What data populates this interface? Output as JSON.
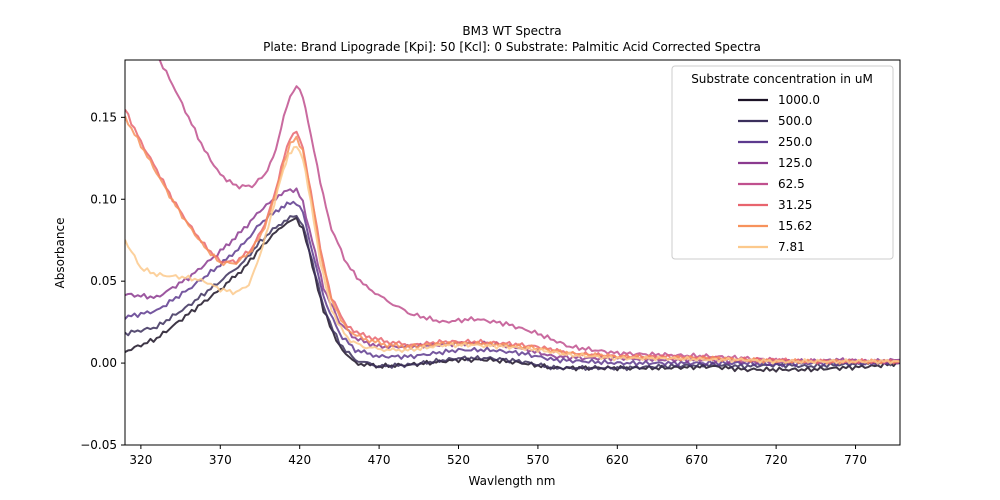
{
  "chart_data": {
    "type": "line",
    "title": "BM3 WT Spectra",
    "subtitle": "Plate: Brand Lipograde  [Kpi]: 50  [Kcl]: 0  Substrate: Palmitic Acid Corrected Spectra",
    "xlabel": "Wavlength nm",
    "ylabel": "Absorbance",
    "xlim": [
      310,
      798
    ],
    "ylim": [
      -0.05,
      0.185
    ],
    "xticks": [
      320,
      370,
      420,
      470,
      520,
      570,
      620,
      670,
      720,
      770
    ],
    "yticks": [
      -0.05,
      0.0,
      0.05,
      0.1,
      0.15
    ],
    "ytick_labels": [
      "−0.05",
      "0.00",
      "0.05",
      "0.10",
      "0.15"
    ],
    "grid": false,
    "legend_title": "Substrate concentration in uM",
    "legend_position": "top-right",
    "series": [
      {
        "name": "1000.0",
        "color": "#1c1326",
        "x": [
          310,
          330,
          350,
          370,
          385,
          395,
          405,
          412,
          418,
          422,
          428,
          435,
          445,
          455,
          470,
          490,
          520,
          540,
          560,
          580,
          600,
          620,
          650,
          680,
          700,
          720,
          740,
          760,
          780,
          798
        ],
        "y": [
          0.007,
          0.015,
          0.03,
          0.045,
          0.058,
          0.07,
          0.08,
          0.086,
          0.088,
          0.082,
          0.06,
          0.032,
          0.01,
          0.0,
          -0.002,
          -0.001,
          0.002,
          0.002,
          0.0,
          -0.003,
          -0.003,
          -0.003,
          -0.003,
          -0.002,
          -0.004,
          -0.004,
          -0.004,
          -0.003,
          -0.002,
          0.0
        ]
      },
      {
        "name": "500.0",
        "color": "#3b2f5c",
        "x": [
          310,
          330,
          350,
          370,
          385,
          395,
          405,
          412,
          418,
          422,
          428,
          435,
          445,
          455,
          470,
          490,
          520,
          540,
          560,
          580,
          600,
          620,
          650,
          680,
          700,
          720,
          740,
          760,
          780,
          798
        ],
        "y": [
          0.018,
          0.022,
          0.035,
          0.05,
          0.062,
          0.074,
          0.083,
          0.088,
          0.09,
          0.084,
          0.062,
          0.034,
          0.012,
          0.002,
          -0.002,
          -0.001,
          0.003,
          0.003,
          0.001,
          -0.003,
          -0.003,
          -0.003,
          -0.002,
          -0.001,
          -0.002,
          -0.001,
          -0.002,
          -0.001,
          0.0,
          0.0
        ]
      },
      {
        "name": "250.0",
        "color": "#5d3a8e",
        "x": [
          310,
          330,
          350,
          370,
          385,
          395,
          405,
          412,
          418,
          422,
          428,
          435,
          445,
          455,
          470,
          490,
          520,
          540,
          560,
          580,
          600,
          620,
          650,
          680,
          700,
          720,
          740,
          760,
          780,
          798
        ],
        "y": [
          0.028,
          0.032,
          0.045,
          0.06,
          0.073,
          0.085,
          0.093,
          0.097,
          0.098,
          0.092,
          0.068,
          0.04,
          0.018,
          0.008,
          0.004,
          0.004,
          0.008,
          0.008,
          0.006,
          0.002,
          0.001,
          0.0,
          0.0,
          0.0,
          0.0,
          -0.001,
          0.0,
          0.0,
          0.0,
          0.0
        ]
      },
      {
        "name": "125.0",
        "color": "#8b3a8f",
        "x": [
          310,
          330,
          350,
          370,
          385,
          395,
          405,
          412,
          418,
          422,
          428,
          435,
          445,
          455,
          470,
          490,
          520,
          540,
          560,
          580,
          600,
          620,
          650,
          680,
          700,
          720,
          740,
          760,
          780,
          798
        ],
        "y": [
          0.042,
          0.04,
          0.052,
          0.068,
          0.082,
          0.093,
          0.101,
          0.105,
          0.106,
          0.098,
          0.074,
          0.046,
          0.025,
          0.015,
          0.01,
          0.01,
          0.012,
          0.012,
          0.009,
          0.004,
          0.003,
          0.003,
          0.002,
          0.002,
          0.001,
          0.001,
          0.001,
          0.002,
          0.001,
          0.002
        ]
      },
      {
        "name": "62.5",
        "color": "#c0508e",
        "x": [
          310,
          320,
          330,
          340,
          350,
          360,
          370,
          380,
          390,
          398,
          405,
          410,
          414,
          418,
          422,
          427,
          433,
          440,
          450,
          460,
          475,
          490,
          510,
          530,
          550,
          570,
          590,
          620,
          650,
          680,
          700,
          720,
          740,
          760,
          780,
          798
        ],
        "y": [
          0.215,
          0.2,
          0.188,
          0.17,
          0.15,
          0.13,
          0.115,
          0.108,
          0.108,
          0.115,
          0.13,
          0.15,
          0.163,
          0.169,
          0.163,
          0.14,
          0.11,
          0.082,
          0.06,
          0.048,
          0.038,
          0.03,
          0.025,
          0.027,
          0.024,
          0.018,
          0.01,
          0.006,
          0.005,
          0.004,
          0.003,
          0.002,
          0.001,
          0.001,
          0.001,
          0.001
        ]
      },
      {
        "name": "31.25",
        "color": "#e8646e",
        "x": [
          310,
          320,
          330,
          340,
          350,
          360,
          370,
          380,
          390,
          398,
          405,
          410,
          414,
          418,
          422,
          427,
          433,
          440,
          450,
          460,
          475,
          490,
          510,
          530,
          550,
          570,
          590,
          620,
          650,
          680,
          700,
          720,
          740,
          760,
          780,
          798
        ],
        "y": [
          0.155,
          0.135,
          0.118,
          0.1,
          0.085,
          0.072,
          0.062,
          0.062,
          0.07,
          0.085,
          0.105,
          0.125,
          0.138,
          0.141,
          0.132,
          0.105,
          0.07,
          0.04,
          0.022,
          0.017,
          0.013,
          0.011,
          0.013,
          0.013,
          0.012,
          0.01,
          0.006,
          0.004,
          0.004,
          0.003,
          0.002,
          0.002,
          0.001,
          0.001,
          0.001,
          0.001
        ]
      },
      {
        "name": "15.62",
        "color": "#f7925c",
        "x": [
          310,
          320,
          330,
          340,
          350,
          360,
          370,
          380,
          390,
          398,
          405,
          410,
          414,
          418,
          422,
          427,
          433,
          440,
          450,
          460,
          475,
          490,
          510,
          530,
          550,
          570,
          590,
          620,
          650,
          680,
          700,
          720,
          740,
          760,
          780,
          798
        ],
        "y": [
          0.15,
          0.133,
          0.116,
          0.099,
          0.084,
          0.071,
          0.061,
          0.061,
          0.069,
          0.083,
          0.103,
          0.122,
          0.134,
          0.137,
          0.13,
          0.103,
          0.068,
          0.038,
          0.02,
          0.015,
          0.011,
          0.01,
          0.012,
          0.012,
          0.011,
          0.009,
          0.006,
          0.004,
          0.003,
          0.003,
          0.002,
          0.001,
          0.001,
          0.001,
          0.001,
          0.001
        ]
      },
      {
        "name": "7.81",
        "color": "#fcc98c",
        "x": [
          310,
          320,
          330,
          340,
          350,
          360,
          370,
          380,
          388,
          395,
          402,
          408,
          413,
          418,
          422,
          427,
          433,
          440,
          450,
          460,
          475,
          490,
          510,
          530,
          550,
          570,
          590,
          620,
          650,
          680,
          700,
          720,
          740,
          760,
          780,
          798
        ],
        "y": [
          0.075,
          0.058,
          0.054,
          0.053,
          0.052,
          0.05,
          0.045,
          0.043,
          0.048,
          0.065,
          0.09,
          0.112,
          0.127,
          0.133,
          0.125,
          0.098,
          0.062,
          0.032,
          0.015,
          0.01,
          0.008,
          0.008,
          0.011,
          0.011,
          0.01,
          0.008,
          0.005,
          0.003,
          0.003,
          0.002,
          0.002,
          0.001,
          0.001,
          0.001,
          0.001,
          0.001
        ]
      }
    ]
  }
}
